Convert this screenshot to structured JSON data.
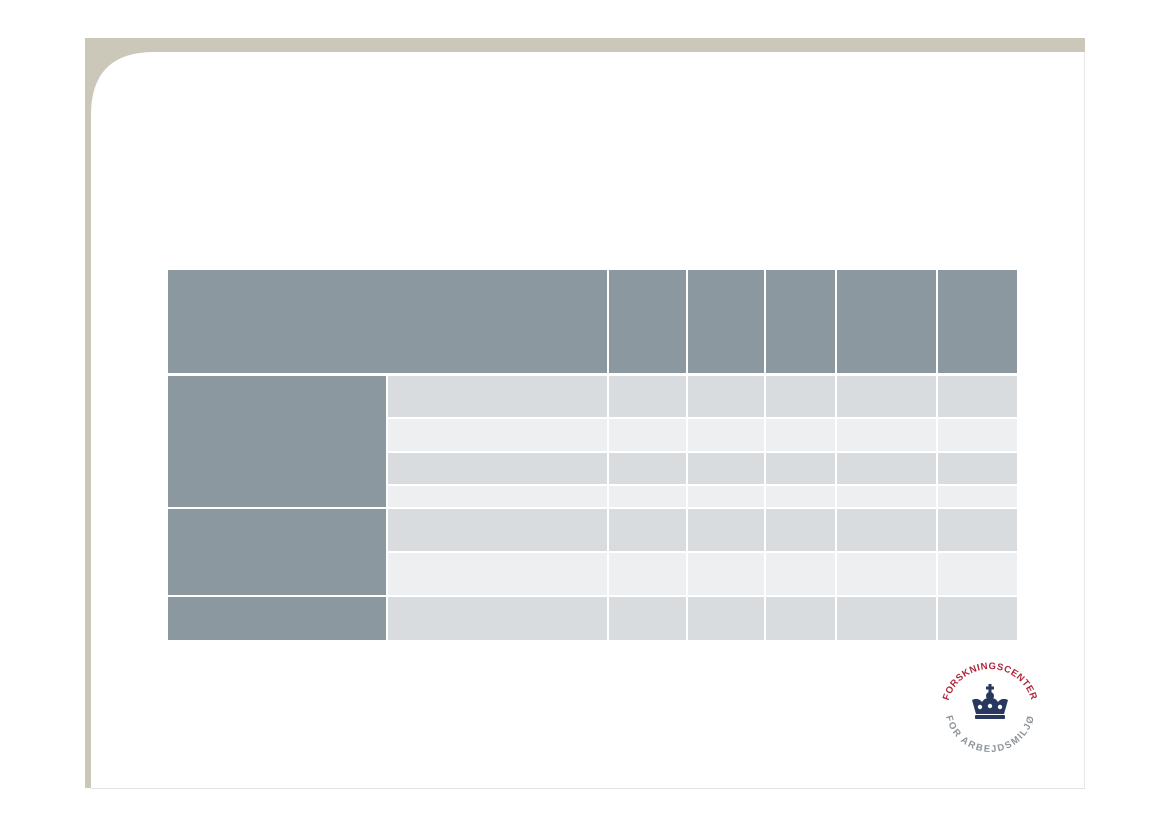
{
  "logo": {
    "top_text": "FORSKNINGSCENTER",
    "bottom_text": "FOR ARBEJDSMILJØ"
  }
}
